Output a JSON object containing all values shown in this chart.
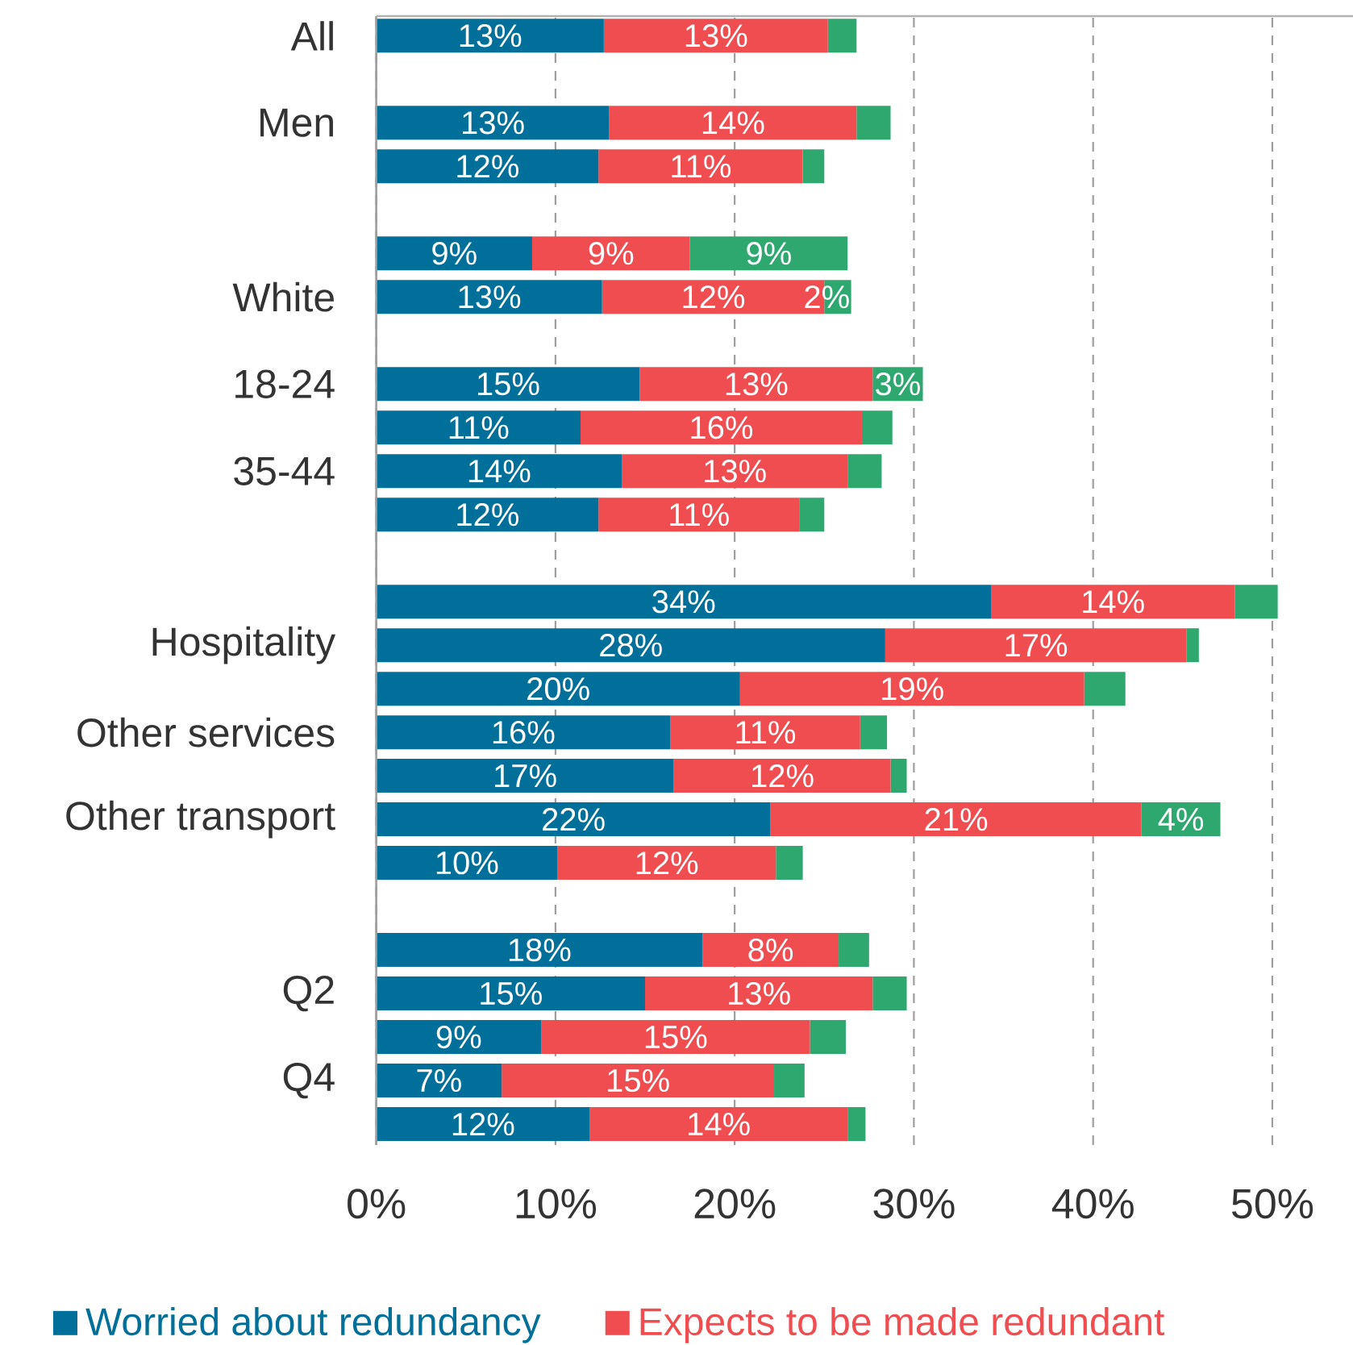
{
  "chart_data": {
    "type": "bar",
    "orientation": "horizontal",
    "stacked": true,
    "categories": [
      "All",
      null,
      "Men",
      null,
      null,
      null,
      "White",
      null,
      "18-24",
      null,
      "35-44",
      null,
      null,
      null,
      "Hospitality",
      null,
      "Other services",
      null,
      "Other transport",
      null,
      null,
      null,
      "Q2",
      null,
      "Q4",
      null
    ],
    "series": [
      {
        "name": "Worried about redundancy",
        "color": "#006f99",
        "values": [
          12.7,
          null,
          13.0,
          12.4,
          null,
          8.7,
          12.6,
          null,
          14.7,
          11.4,
          13.7,
          12.4,
          null,
          34.3,
          28.4,
          20.3,
          16.4,
          16.6,
          22.0,
          10.1,
          null,
          18.2,
          15.0,
          9.2,
          7.0,
          11.9
        ],
        "value_labels": [
          "13%",
          null,
          "13%",
          "12%",
          null,
          "9%",
          "13%",
          null,
          "15%",
          "11%",
          "14%",
          "12%",
          null,
          "34%",
          "28%",
          "20%",
          "16%",
          "17%",
          "22%",
          "10%",
          null,
          "18%",
          "15%",
          "9%",
          "7%",
          "12%"
        ]
      },
      {
        "name": "Expects to be made redundant",
        "color": "#ef4d50",
        "values": [
          12.5,
          null,
          13.8,
          11.4,
          null,
          8.8,
          12.4,
          null,
          13.0,
          15.7,
          12.6,
          11.2,
          null,
          13.6,
          16.8,
          19.2,
          10.6,
          12.1,
          20.7,
          12.2,
          null,
          7.6,
          12.7,
          15.0,
          15.2,
          14.4
        ],
        "value_labels": [
          "13%",
          null,
          "14%",
          "11%",
          null,
          "9%",
          "12%",
          null,
          "13%",
          "16%",
          "13%",
          "11%",
          null,
          "14%",
          "17%",
          "19%",
          "11%",
          "12%",
          "21%",
          "12%",
          null,
          "8%",
          "13%",
          "15%",
          "15%",
          "14%"
        ]
      },
      {
        "color": "#2ea86e",
        "values": [
          1.6,
          null,
          1.9,
          1.2,
          null,
          8.8,
          1.5,
          null,
          2.8,
          1.7,
          1.9,
          1.4,
          null,
          2.4,
          0.7,
          2.3,
          1.5,
          0.9,
          4.4,
          1.5,
          null,
          1.7,
          1.9,
          2.0,
          1.7,
          1.0
        ],
        "value_labels": [
          null,
          null,
          null,
          null,
          null,
          "9%",
          "2%",
          null,
          "3%",
          null,
          null,
          null,
          null,
          null,
          null,
          null,
          null,
          null,
          "4%",
          null,
          null,
          null,
          null,
          null,
          null,
          null
        ]
      }
    ],
    "xlim": [
      0,
      54.5
    ],
    "xticks": [
      {
        "value": 0,
        "label": "0%"
      },
      {
        "value": 10,
        "label": "10%"
      },
      {
        "value": 20,
        "label": "20%"
      },
      {
        "value": 30,
        "label": "30%"
      },
      {
        "value": 40,
        "label": "40%"
      },
      {
        "value": 50,
        "label": "50%"
      }
    ],
    "grid": "x",
    "legend": "bottom"
  }
}
